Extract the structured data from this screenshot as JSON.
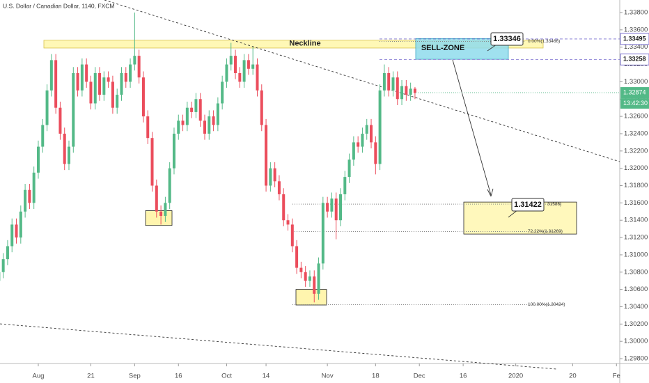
{
  "chart_data": {
    "type": "candlestick",
    "title": "U.S. Dollar / Canadian Dollar, 1140, FXCM",
    "up_color": "#53b987",
    "down_color": "#eb4d5c",
    "open": [
      1.307,
      1.308,
      1.3095,
      1.311,
      1.3135,
      1.312,
      1.315,
      1.3175,
      1.316,
      1.3195,
      1.3225,
      1.325,
      1.329,
      1.3325,
      1.327,
      1.324,
      1.3205,
      1.3225,
      1.331,
      1.329,
      1.332,
      1.33,
      1.3275,
      1.331,
      1.3285,
      1.3305,
      1.33,
      1.327,
      1.3285,
      1.331,
      1.33,
      1.332,
      1.333,
      1.3305,
      1.326,
      1.3235,
      1.318,
      1.315,
      1.3145,
      1.316,
      1.32,
      1.324,
      1.3255,
      1.325,
      1.327,
      1.3265,
      1.328,
      1.3255,
      1.324,
      1.326,
      1.325,
      1.3275,
      1.33,
      1.332,
      1.333,
      1.331,
      1.33,
      1.3325,
      1.3315,
      1.332,
      1.329,
      1.325,
      1.318,
      1.32,
      1.3185,
      1.317,
      1.314,
      1.3135,
      1.311,
      1.3085,
      1.308,
      1.307,
      1.3075,
      1.3055,
      1.309,
      1.316,
      1.315,
      1.3165,
      1.314,
      1.317,
      1.319,
      1.321,
      1.323,
      1.3225,
      1.324,
      1.325,
      1.323,
      1.3205,
      1.329,
      1.331,
      1.329,
      1.3305,
      1.328,
      1.3295,
      1.3285,
      1.3292
    ],
    "high": [
      1.3087,
      1.3102,
      1.3117,
      1.3142,
      1.3142,
      1.3157,
      1.3182,
      1.3182,
      1.3202,
      1.3232,
      1.3257,
      1.3297,
      1.3332,
      1.3332,
      1.3277,
      1.3247,
      1.3232,
      1.3317,
      1.3317,
      1.3327,
      1.3327,
      1.3307,
      1.3317,
      1.3317,
      1.3312,
      1.3312,
      1.3307,
      1.3292,
      1.3317,
      1.3317,
      1.3327,
      1.338,
      1.3337,
      1.3312,
      1.3267,
      1.3242,
      1.3187,
      1.3157,
      1.3167,
      1.3207,
      1.3247,
      1.3262,
      1.3262,
      1.3277,
      1.3277,
      1.3287,
      1.3287,
      1.3262,
      1.3267,
      1.3267,
      1.3282,
      1.3307,
      1.3327,
      1.3345,
      1.3337,
      1.3317,
      1.3332,
      1.3332,
      1.334,
      1.3327,
      1.3297,
      1.3257,
      1.3207,
      1.3207,
      1.3192,
      1.3177,
      1.3147,
      1.3142,
      1.3117,
      1.3092,
      1.3087,
      1.3082,
      1.3082,
      1.3097,
      1.3167,
      1.3167,
      1.3172,
      1.3172,
      1.3177,
      1.3197,
      1.3217,
      1.3237,
      1.3237,
      1.3247,
      1.3257,
      1.3257,
      1.3237,
      1.3297,
      1.332,
      1.3317,
      1.3312,
      1.3312,
      1.3302,
      1.3302,
      1.3299,
      1.3294
    ],
    "low": [
      1.3063,
      1.3073,
      1.3088,
      1.3103,
      1.3113,
      1.3113,
      1.3143,
      1.3153,
      1.3153,
      1.3188,
      1.3218,
      1.3243,
      1.3283,
      1.3263,
      1.3233,
      1.3198,
      1.3198,
      1.3218,
      1.3283,
      1.3283,
      1.3293,
      1.3268,
      1.3268,
      1.3278,
      1.3278,
      1.3293,
      1.3263,
      1.3263,
      1.3278,
      1.3293,
      1.3293,
      1.3313,
      1.3298,
      1.3253,
      1.3228,
      1.3173,
      1.3143,
      1.3135,
      1.3138,
      1.3153,
      1.3193,
      1.3233,
      1.3243,
      1.3243,
      1.3258,
      1.3258,
      1.3248,
      1.3233,
      1.3233,
      1.3243,
      1.3243,
      1.3268,
      1.3293,
      1.3313,
      1.3303,
      1.3293,
      1.3293,
      1.3308,
      1.3308,
      1.3283,
      1.3243,
      1.3173,
      1.3173,
      1.3178,
      1.3163,
      1.3133,
      1.3128,
      1.3103,
      1.3078,
      1.3073,
      1.3063,
      1.3063,
      1.3045,
      1.3048,
      1.3083,
      1.3143,
      1.3143,
      1.3118,
      1.3133,
      1.3163,
      1.3183,
      1.3203,
      1.3218,
      1.3218,
      1.3233,
      1.3223,
      1.3193,
      1.3198,
      1.3283,
      1.3283,
      1.3283,
      1.3273,
      1.3273,
      1.3278,
      1.3278,
      1.328
    ],
    "close": [
      1.308,
      1.3095,
      1.311,
      1.3135,
      1.312,
      1.315,
      1.3175,
      1.316,
      1.3195,
      1.3225,
      1.325,
      1.329,
      1.3325,
      1.327,
      1.324,
      1.3205,
      1.3225,
      1.331,
      1.329,
      1.332,
      1.33,
      1.3275,
      1.331,
      1.3285,
      1.3305,
      1.33,
      1.327,
      1.3285,
      1.331,
      1.33,
      1.332,
      1.333,
      1.3305,
      1.326,
      1.3235,
      1.318,
      1.315,
      1.3145,
      1.316,
      1.32,
      1.324,
      1.3255,
      1.325,
      1.327,
      1.3265,
      1.328,
      1.3255,
      1.324,
      1.326,
      1.325,
      1.3275,
      1.33,
      1.332,
      1.333,
      1.331,
      1.33,
      1.3325,
      1.3315,
      1.332,
      1.329,
      1.325,
      1.318,
      1.32,
      1.3185,
      1.317,
      1.314,
      1.3135,
      1.311,
      1.3085,
      1.308,
      1.307,
      1.3075,
      1.3055,
      1.309,
      1.316,
      1.315,
      1.3165,
      1.314,
      1.317,
      1.319,
      1.321,
      1.323,
      1.3225,
      1.324,
      1.325,
      1.323,
      1.3205,
      1.329,
      1.331,
      1.329,
      1.3305,
      1.328,
      1.3295,
      1.3285,
      1.3292,
      1.3287
    ],
    "xlim": [
      0.26,
      141.75
    ],
    "xticks": [
      {
        "value": 9,
        "label": "Aug"
      },
      21,
      {
        "value": 31,
        "label": "Sep"
      },
      {
        "value": 41,
        "label": "16"
      },
      {
        "value": 52,
        "label": "Oct"
      },
      {
        "value": 61,
        "label": "14"
      },
      {
        "value": 75,
        "label": "Nov"
      },
      {
        "value": 86,
        "label": "18"
      },
      {
        "value": 96,
        "label": "Dec"
      },
      {
        "value": 106,
        "label": "16"
      },
      {
        "value": 118,
        "label": "2020"
      },
      {
        "value": 131,
        "label": "20"
      },
      {
        "value": 141,
        "label": "Fe"
      }
    ],
    "ylim": [
      1.29744,
      1.33945
    ],
    "yticks": [
      {
        "value": 1.298,
        "label": "1.29800"
      },
      {
        "value": 1.3,
        "label": "1.30000"
      },
      {
        "value": 1.302,
        "label": "1.30200"
      },
      {
        "value": 1.304,
        "label": "1.30400"
      },
      {
        "value": 1.306,
        "label": "1.30600"
      },
      {
        "value": 1.308,
        "label": "1.30800"
      },
      {
        "value": 1.31,
        "label": "1.31000"
      },
      {
        "value": 1.312,
        "label": "1.31200"
      },
      {
        "value": 1.314,
        "label": "1.31400"
      },
      {
        "value": 1.316,
        "label": "1.31600"
      },
      {
        "value": 1.318,
        "label": "1.31800"
      },
      {
        "value": 1.32,
        "label": "1.32000"
      },
      {
        "value": 1.322,
        "label": "1.32200"
      },
      {
        "value": 1.324,
        "label": "1.32400"
      },
      {
        "value": 1.326,
        "label": "1.32600"
      },
      {
        "value": 1.328,
        "label": "1.32800"
      },
      {
        "value": 1.33,
        "label": "1.33000"
      },
      {
        "value": 1.332,
        "label": "1.33200"
      },
      {
        "value": 1.334,
        "label": "1.33400"
      },
      {
        "value": 1.336,
        "label": "1.33600"
      },
      {
        "value": 1.338,
        "label": "1.33800"
      }
    ],
    "levels": [
      1.33495,
      1.33258
    ],
    "current_price": 1.32874,
    "countdown": "13:42:30",
    "zones": [
      {
        "label": "Neckline",
        "top": 1.3348,
        "bottom": 1.3339,
        "color": "#fff59d"
      },
      {
        "label": "SELL-ZONE",
        "top": 1.335,
        "bottom": 1.3326,
        "color": "#8fdcec"
      },
      {
        "top": 1.3161,
        "bottom": 1.3124,
        "color": "#fff7b0"
      },
      {
        "top": 1.3151,
        "bottom": 1.3134,
        "color": "#fff3a0"
      },
      {
        "top": 1.306,
        "bottom": 1.3042,
        "color": "#fff3a0"
      }
    ],
    "fib_levels": [
      {
        "value": 1.33466,
        "label": "0.00%(1.33466)"
      },
      {
        "value": 1.31586,
        "label": "31586)"
      },
      {
        "value": 1.31269,
        "label": "72.22%(1.31269)"
      },
      {
        "value": 1.30424,
        "label": "100.00%(1.30424)"
      }
    ],
    "callouts": [
      1.33346,
      1.31422
    ],
    "trendlines": [
      [
        1.33945,
        1.32077
      ],
      [
        1.30202,
        1.29679
      ]
    ]
  }
}
